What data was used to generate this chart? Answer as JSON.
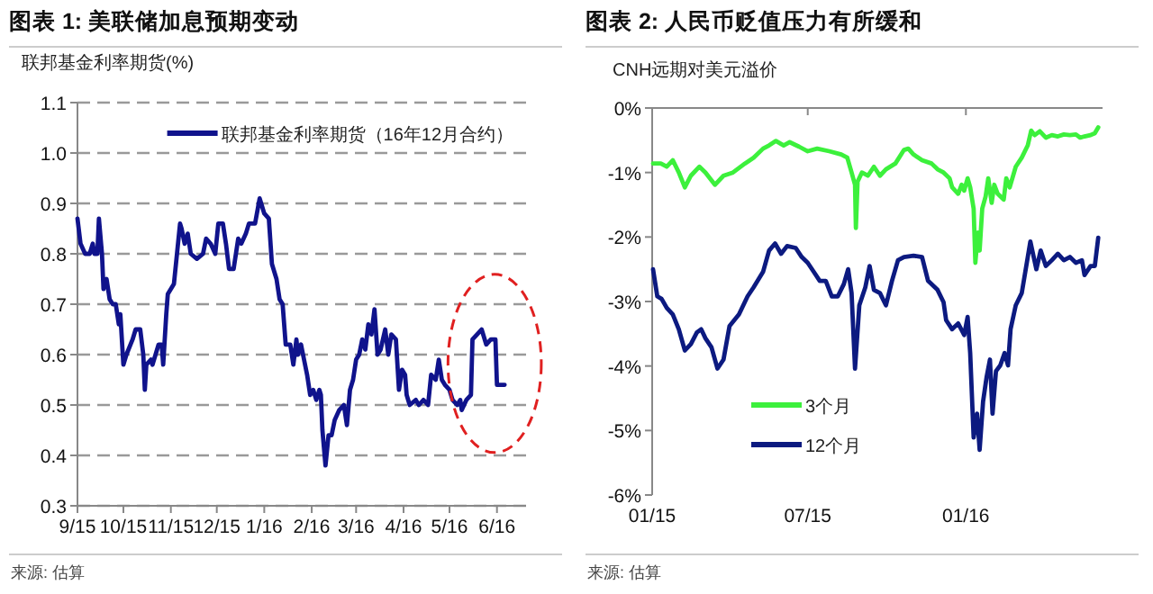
{
  "chart_data": [
    {
      "type": "line",
      "title": "图表 1: 美联储加息预期变动",
      "ylabel": "联邦基金利率期货(%)",
      "series": [
        {
          "name": "联邦基金利率期货（16年12月合约）",
          "color": "#10138c",
          "x": [
            "2015-09-01",
            "2015-09-03",
            "2015-09-06",
            "2015-09-09",
            "2015-09-11",
            "2015-09-12",
            "2015-09-14",
            "2015-09-15",
            "2015-09-17",
            "2015-09-18",
            "2015-09-20",
            "2015-09-22",
            "2015-09-24",
            "2015-09-26",
            "2015-09-28",
            "2015-09-29",
            "2015-10-01",
            "2015-10-03",
            "2015-10-07",
            "2015-10-09",
            "2015-10-12",
            "2015-10-14",
            "2015-10-15",
            "2015-10-16",
            "2015-10-19",
            "2015-10-20",
            "2015-10-22",
            "2015-10-24",
            "2015-10-26",
            "2015-10-27",
            "2015-10-29",
            "2015-10-30",
            "2015-11-03",
            "2015-11-05",
            "2015-11-07",
            "2015-11-08",
            "2015-11-10",
            "2015-11-12",
            "2015-11-14",
            "2015-11-18",
            "2015-11-22",
            "2015-11-24",
            "2015-11-27",
            "2015-11-30",
            "2015-12-02",
            "2015-12-05",
            "2015-12-07",
            "2015-12-09",
            "2015-12-12",
            "2015-12-15",
            "2015-12-17",
            "2015-12-20",
            "2015-12-22",
            "2015-12-26",
            "2015-12-29",
            "2016-01-01",
            "2016-01-04",
            "2016-01-06",
            "2016-01-09",
            "2016-01-11",
            "2016-01-13",
            "2016-01-15",
            "2016-01-18",
            "2016-01-20",
            "2016-01-22",
            "2016-01-23",
            "2016-01-25",
            "2016-01-27",
            "2016-01-29",
            "2016-01-31",
            "2016-02-02",
            "2016-02-04",
            "2016-02-06",
            "2016-02-07",
            "2016-02-08",
            "2016-02-10",
            "2016-02-12",
            "2016-02-14",
            "2016-02-16",
            "2016-02-19",
            "2016-02-22",
            "2016-02-24",
            "2016-02-26",
            "2016-02-28",
            "2016-03-01",
            "2016-03-03",
            "2016-03-05",
            "2016-03-07",
            "2016-03-09",
            "2016-03-11",
            "2016-03-13",
            "2016-03-15",
            "2016-03-17",
            "2016-03-20",
            "2016-03-22",
            "2016-03-24",
            "2016-03-27",
            "2016-03-29",
            "2016-03-31",
            "2016-04-02",
            "2016-04-03",
            "2016-04-05",
            "2016-04-09",
            "2016-04-11",
            "2016-04-14",
            "2016-04-17",
            "2016-04-19",
            "2016-04-22",
            "2016-04-24",
            "2016-04-26",
            "2016-04-28",
            "2016-05-01",
            "2016-05-03",
            "2016-05-06",
            "2016-05-08",
            "2016-05-09",
            "2016-05-12",
            "2016-05-15",
            "2016-05-16",
            "2016-05-19",
            "2016-05-22",
            "2016-05-25",
            "2016-05-28",
            "2016-05-31",
            "2016-06-01",
            "2016-06-04",
            "2016-06-06"
          ],
          "values": [
            0.87,
            0.82,
            0.8,
            0.8,
            0.82,
            0.8,
            0.8,
            0.87,
            0.8,
            0.73,
            0.75,
            0.71,
            0.7,
            0.7,
            0.66,
            0.68,
            0.58,
            0.6,
            0.63,
            0.65,
            0.65,
            0.6,
            0.53,
            0.58,
            0.59,
            0.58,
            0.6,
            0.62,
            0.62,
            0.58,
            0.68,
            0.72,
            0.74,
            0.8,
            0.86,
            0.85,
            0.82,
            0.84,
            0.8,
            0.79,
            0.8,
            0.83,
            0.82,
            0.8,
            0.86,
            0.86,
            0.82,
            0.77,
            0.77,
            0.83,
            0.82,
            0.84,
            0.86,
            0.86,
            0.91,
            0.88,
            0.87,
            0.78,
            0.75,
            0.71,
            0.7,
            0.62,
            0.62,
            0.58,
            0.63,
            0.6,
            0.62,
            0.59,
            0.56,
            0.52,
            0.53,
            0.51,
            0.53,
            0.52,
            0.45,
            0.38,
            0.44,
            0.44,
            0.47,
            0.49,
            0.5,
            0.46,
            0.53,
            0.55,
            0.59,
            0.6,
            0.63,
            0.61,
            0.66,
            0.64,
            0.69,
            0.6,
            0.61,
            0.65,
            0.6,
            0.64,
            0.63,
            0.53,
            0.57,
            0.56,
            0.52,
            0.5,
            0.51,
            0.5,
            0.51,
            0.5,
            0.56,
            0.55,
            0.59,
            0.55,
            0.54,
            0.53,
            0.51,
            0.5,
            0.51,
            0.49,
            0.51,
            0.52,
            0.63,
            0.64,
            0.65,
            0.62,
            0.63,
            0.63,
            0.54,
            0.54,
            0.54
          ]
        }
      ],
      "xlim": [
        "2015-09-01",
        "2016-06-20"
      ],
      "xticks": [
        {
          "value": "2015-09-01",
          "label": "9/15"
        },
        {
          "value": "2015-10-01",
          "label": "10/15"
        },
        {
          "value": "2015-11-01",
          "label": "11/15"
        },
        {
          "value": "2015-12-01",
          "label": "12/15"
        },
        {
          "value": "2016-01-01",
          "label": "1/16"
        },
        {
          "value": "2016-02-01",
          "label": "2/16"
        },
        {
          "value": "2016-03-01",
          "label": "3/16"
        },
        {
          "value": "2016-04-01",
          "label": "4/16"
        },
        {
          "value": "2016-05-01",
          "label": "5/16"
        },
        {
          "value": "2016-06-01",
          "label": "6/16"
        }
      ],
      "ylim": [
        0.3,
        1.1
      ],
      "yticks": [
        {
          "value": 0.3,
          "label": "0.3"
        },
        {
          "value": 0.4,
          "label": "0.4"
        },
        {
          "value": 0.5,
          "label": "0.5"
        },
        {
          "value": 0.6,
          "label": "0.6"
        },
        {
          "value": 0.7,
          "label": "0.7"
        },
        {
          "value": 0.8,
          "label": "0.8"
        },
        {
          "value": 0.9,
          "label": "0.9"
        },
        {
          "value": 1.0,
          "label": "1.0"
        },
        {
          "value": 1.1,
          "label": "1.1"
        }
      ],
      "grid": "y",
      "legend": "top",
      "annotations": [
        "来源: 估算"
      ]
    },
    {
      "type": "line",
      "title": "图表 2: 人民币贬值压力有所缓和",
      "ylabel": "CNH远期对美元溢价",
      "series": [
        {
          "name": "3个月",
          "color": "#3cf03c",
          "x": [
            "2015-01-02",
            "2015-01-11",
            "2015-01-18",
            "2015-01-25",
            "2015-02-01",
            "2015-02-08",
            "2015-02-15",
            "2015-02-25",
            "2015-03-04",
            "2015-03-15",
            "2015-03-25",
            "2015-04-05",
            "2015-04-19",
            "2015-04-29",
            "2015-05-10",
            "2015-05-17",
            "2015-05-25",
            "2015-06-03",
            "2015-06-10",
            "2015-06-21",
            "2015-07-01",
            "2015-07-12",
            "2015-07-26",
            "2015-08-09",
            "2015-08-16",
            "2015-08-21",
            "2015-08-25",
            "2015-08-26",
            "2015-08-28",
            "2015-09-02",
            "2015-09-09",
            "2015-09-16",
            "2015-09-23",
            "2015-09-30",
            "2015-10-11",
            "2015-10-21",
            "2015-10-26",
            "2015-11-01",
            "2015-11-11",
            "2015-11-22",
            "2015-11-29",
            "2015-12-06",
            "2015-12-13",
            "2015-12-16",
            "2015-12-23",
            "2015-12-27",
            "2015-12-30",
            "2016-01-03",
            "2016-01-06",
            "2016-01-10",
            "2016-01-12",
            "2016-01-15",
            "2016-01-17",
            "2016-01-20",
            "2016-01-24",
            "2016-01-27",
            "2016-01-31",
            "2016-02-03",
            "2016-02-07",
            "2016-02-14",
            "2016-02-17",
            "2016-02-21",
            "2016-02-28",
            "2016-03-06",
            "2016-03-13",
            "2016-03-17",
            "2016-03-21",
            "2016-03-27",
            "2016-04-03",
            "2016-04-10",
            "2016-04-17",
            "2016-04-24",
            "2016-05-01",
            "2016-05-08",
            "2016-05-13",
            "2016-05-18",
            "2016-05-25",
            "2016-05-30",
            "2016-06-03"
          ],
          "values": [
            -0.86,
            -0.86,
            -0.91,
            -0.81,
            -1.0,
            -1.23,
            -1.05,
            -0.91,
            -1.0,
            -1.19,
            -1.05,
            -1.0,
            -0.86,
            -0.77,
            -0.63,
            -0.58,
            -0.51,
            -0.58,
            -0.53,
            -0.6,
            -0.67,
            -0.63,
            -0.67,
            -0.72,
            -0.77,
            -1.0,
            -1.19,
            -1.86,
            -1.14,
            -1.0,
            -1.05,
            -0.91,
            -1.05,
            -0.95,
            -0.86,
            -0.65,
            -0.63,
            -0.72,
            -0.81,
            -0.86,
            -0.95,
            -1.0,
            -1.09,
            -1.23,
            -1.33,
            -1.19,
            -1.28,
            -1.09,
            -1.23,
            -1.56,
            -2.4,
            -1.93,
            -2.21,
            -1.56,
            -1.37,
            -1.09,
            -1.47,
            -1.19,
            -1.33,
            -1.42,
            -1.09,
            -1.23,
            -0.91,
            -0.77,
            -0.58,
            -0.35,
            -0.42,
            -0.36,
            -0.46,
            -0.42,
            -0.44,
            -0.41,
            -0.42,
            -0.41,
            -0.46,
            -0.44,
            -0.42,
            -0.39,
            -0.3
          ]
        },
        {
          "name": "12个月",
          "color": "#0c1a80",
          "x": [
            "2015-01-02",
            "2015-01-07",
            "2015-01-12",
            "2015-01-18",
            "2015-01-25",
            "2015-02-01",
            "2015-02-08",
            "2015-02-15",
            "2015-02-22",
            "2015-02-27",
            "2015-03-04",
            "2015-03-11",
            "2015-03-18",
            "2015-03-25",
            "2015-04-01",
            "2015-04-12",
            "2015-04-22",
            "2015-04-29",
            "2015-05-10",
            "2015-05-17",
            "2015-05-24",
            "2015-05-31",
            "2015-06-07",
            "2015-06-17",
            "2015-06-24",
            "2015-07-01",
            "2015-07-08",
            "2015-07-15",
            "2015-07-22",
            "2015-07-29",
            "2015-08-05",
            "2015-08-12",
            "2015-08-17",
            "2015-08-21",
            "2015-08-25",
            "2015-08-30",
            "2015-09-06",
            "2015-09-11",
            "2015-09-16",
            "2015-09-23",
            "2015-09-30",
            "2015-10-07",
            "2015-10-14",
            "2015-10-21",
            "2015-11-01",
            "2015-11-11",
            "2015-11-18",
            "2015-11-29",
            "2015-12-06",
            "2015-12-09",
            "2015-12-16",
            "2015-12-23",
            "2015-12-30",
            "2016-01-03",
            "2016-01-06",
            "2016-01-10",
            "2016-01-14",
            "2016-01-17",
            "2016-01-21",
            "2016-01-25",
            "2016-01-29",
            "2016-02-01",
            "2016-02-05",
            "2016-02-10",
            "2016-02-15",
            "2016-02-19",
            "2016-02-22",
            "2016-02-28",
            "2016-03-06",
            "2016-03-13",
            "2016-03-16",
            "2016-03-23",
            "2016-03-28",
            "2016-04-03",
            "2016-04-10",
            "2016-04-17",
            "2016-04-24",
            "2016-05-01",
            "2016-05-08",
            "2016-05-15",
            "2016-05-18",
            "2016-05-25",
            "2016-05-30",
            "2016-06-03"
          ],
          "values": [
            -2.5,
            -2.92,
            -2.96,
            -3.1,
            -3.2,
            -3.43,
            -3.76,
            -3.66,
            -3.48,
            -3.43,
            -3.57,
            -3.71,
            -4.04,
            -3.9,
            -3.38,
            -3.2,
            -2.92,
            -2.78,
            -2.54,
            -2.21,
            -2.1,
            -2.26,
            -2.14,
            -2.17,
            -2.31,
            -2.4,
            -2.54,
            -2.68,
            -2.68,
            -2.92,
            -2.92,
            -2.73,
            -2.5,
            -2.87,
            -4.04,
            -3.06,
            -2.78,
            -2.45,
            -2.82,
            -2.87,
            -3.06,
            -2.68,
            -2.36,
            -2.31,
            -2.29,
            -2.31,
            -2.68,
            -2.82,
            -3.01,
            -3.29,
            -3.43,
            -3.34,
            -3.52,
            -3.24,
            -3.8,
            -5.11,
            -4.74,
            -5.3,
            -4.55,
            -4.18,
            -3.9,
            -4.74,
            -4.08,
            -3.99,
            -3.8,
            -3.99,
            -3.43,
            -3.06,
            -2.87,
            -2.31,
            -2.07,
            -2.5,
            -2.21,
            -2.45,
            -2.36,
            -2.26,
            -2.36,
            -2.31,
            -2.4,
            -2.36,
            -2.59,
            -2.45,
            -2.45,
            -2.01
          ]
        }
      ],
      "xlim": [
        "2015-01-01",
        "2016-06-08"
      ],
      "xticks": [
        {
          "value": "2015-01-01",
          "label": "01/15"
        },
        {
          "value": "2015-07-01",
          "label": "07/15"
        },
        {
          "value": "2016-01-01",
          "label": "01/16"
        }
      ],
      "ylim": [
        -6,
        0
      ],
      "yticks": [
        {
          "value": -6,
          "label": "-6%"
        },
        {
          "value": -5,
          "label": "-5%"
        },
        {
          "value": -4,
          "label": "-4%"
        },
        {
          "value": -3,
          "label": "-3%"
        },
        {
          "value": -2,
          "label": "-2%"
        },
        {
          "value": -1,
          "label": "-1%"
        },
        {
          "value": 0,
          "label": "0%"
        }
      ],
      "legend": "bottom left",
      "annotations": [
        "来源: 估算"
      ]
    }
  ]
}
